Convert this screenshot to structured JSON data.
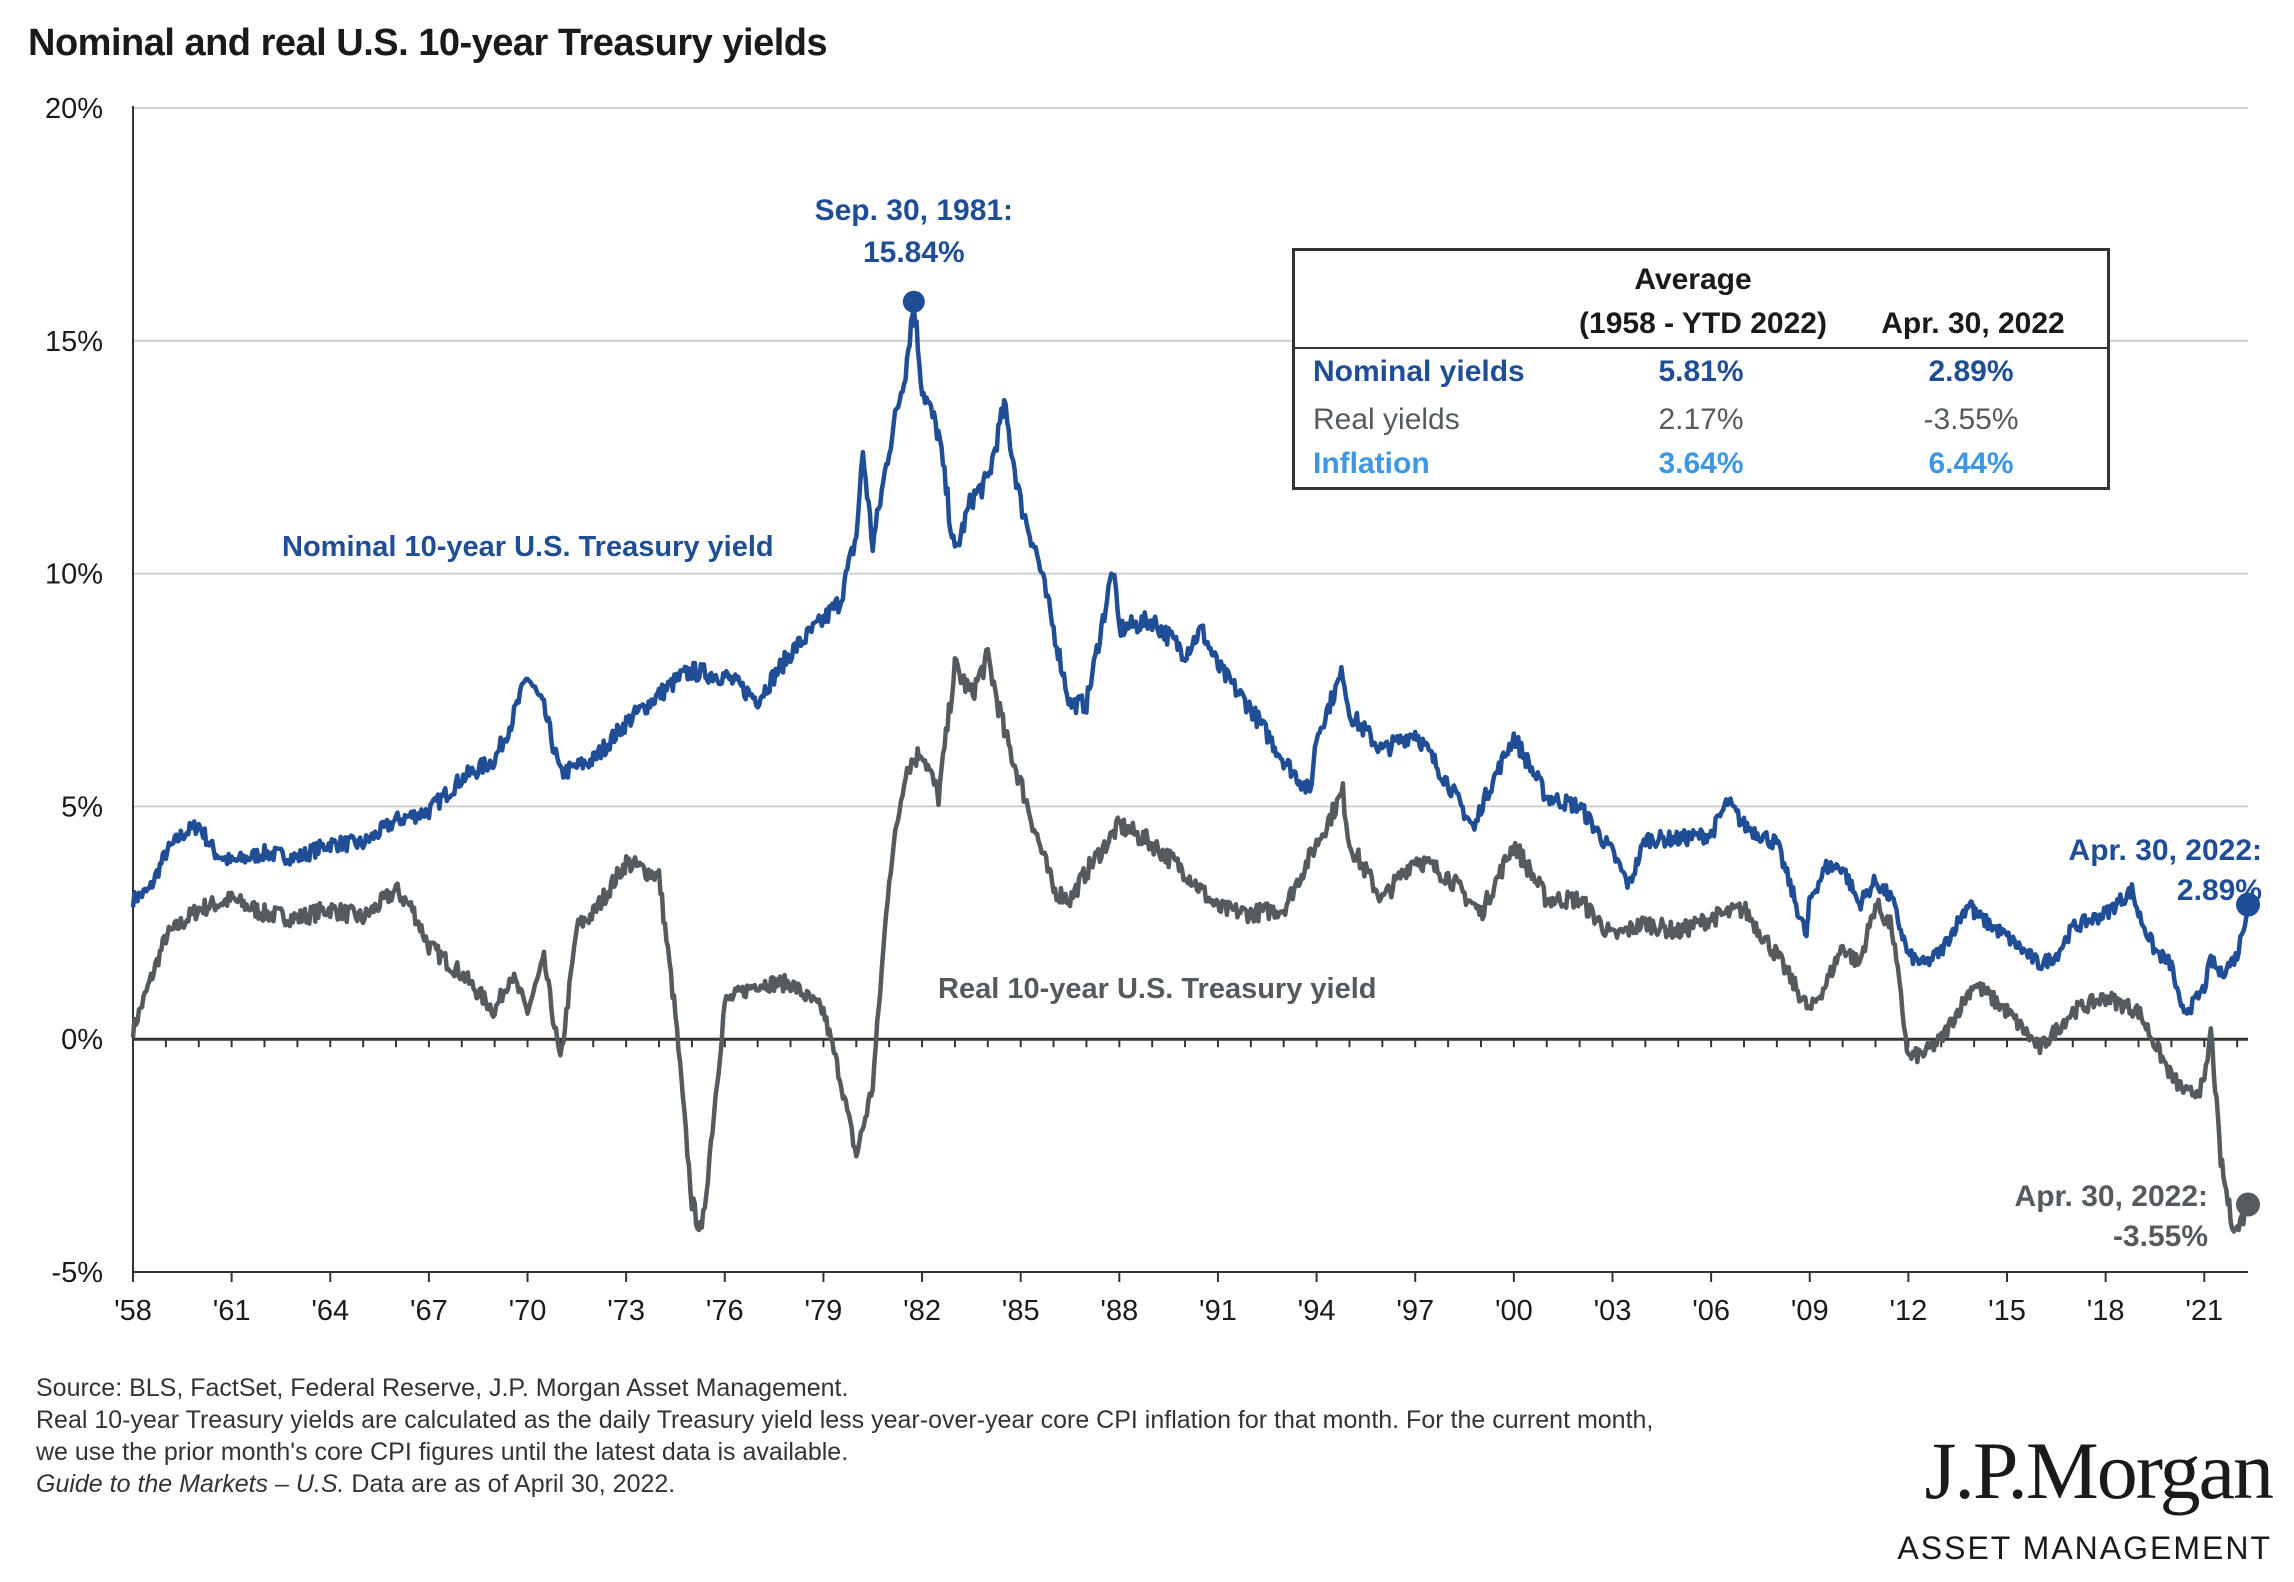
{
  "title": "Nominal and real U.S. 10-year Treasury yields",
  "colors": {
    "nominal": "#1f4e96",
    "real": "#555a5f",
    "inflation": "#3c97e6",
    "grid": "#d0d0d0",
    "axis": "#333333"
  },
  "chart_data": {
    "type": "line",
    "title": "Nominal and real U.S. 10-year Treasury yields",
    "ylim": [
      -5,
      20
    ],
    "xlim": [
      1958,
      2022.33
    ],
    "yticks": [
      {
        "value": 20,
        "label": "20%"
      },
      {
        "value": 15,
        "label": "15%"
      },
      {
        "value": 10,
        "label": "10%"
      },
      {
        "value": 5,
        "label": "5%"
      },
      {
        "value": 0,
        "label": "0%"
      },
      {
        "value": -5,
        "label": "-5%"
      }
    ],
    "xticks": [
      {
        "value": 1958,
        "label": "'58"
      },
      {
        "value": 1961,
        "label": "'61"
      },
      {
        "value": 1964,
        "label": "'64"
      },
      {
        "value": 1967,
        "label": "'67"
      },
      {
        "value": 1970,
        "label": "'70"
      },
      {
        "value": 1973,
        "label": "'73"
      },
      {
        "value": 1976,
        "label": "'76"
      },
      {
        "value": 1979,
        "label": "'79"
      },
      {
        "value": 1982,
        "label": "'82"
      },
      {
        "value": 1985,
        "label": "'85"
      },
      {
        "value": 1988,
        "label": "'88"
      },
      {
        "value": 1991,
        "label": "'91"
      },
      {
        "value": 1994,
        "label": "'94"
      },
      {
        "value": 1997,
        "label": "'97"
      },
      {
        "value": 2000,
        "label": "'00"
      },
      {
        "value": 2003,
        "label": "'03"
      },
      {
        "value": 2006,
        "label": "'06"
      },
      {
        "value": 2009,
        "label": "'09"
      },
      {
        "value": 2012,
        "label": "'12"
      },
      {
        "value": 2015,
        "label": "'15"
      },
      {
        "value": 2018,
        "label": "'18"
      },
      {
        "value": 2021,
        "label": "'21"
      }
    ],
    "grid": true,
    "series": [
      {
        "name": "Nominal 10-year U.S. Treasury yield",
        "x": [
          1958.0,
          1958.5,
          1959.0,
          1959.5,
          1960.0,
          1960.5,
          1961.0,
          1962.0,
          1963.0,
          1964.0,
          1965.0,
          1966.0,
          1967.0,
          1968.0,
          1969.0,
          1969.5,
          1970.0,
          1970.5,
          1971.0,
          1972.0,
          1973.0,
          1974.0,
          1974.7,
          1975.0,
          1976.0,
          1977.0,
          1978.0,
          1979.0,
          1979.5,
          1980.0,
          1980.2,
          1980.5,
          1981.0,
          1981.5,
          1981.75,
          1982.0,
          1982.5,
          1983.0,
          1983.5,
          1984.0,
          1984.5,
          1985.0,
          1985.5,
          1986.0,
          1986.5,
          1987.0,
          1987.5,
          1987.8,
          1988.0,
          1989.0,
          1990.0,
          1990.5,
          1991.0,
          1992.0,
          1993.0,
          1993.8,
          1994.0,
          1994.8,
          1995.0,
          1996.0,
          1997.0,
          1998.0,
          1998.8,
          1999.0,
          2000.0,
          2001.0,
          2002.0,
          2003.0,
          2003.5,
          2004.0,
          2005.0,
          2006.0,
          2006.5,
          2007.0,
          2008.0,
          2008.9,
          2009.0,
          2009.5,
          2010.0,
          2010.5,
          2011.0,
          2011.5,
          2012.0,
          2012.5,
          2013.0,
          2013.9,
          2014.0,
          2015.0,
          2016.0,
          2016.5,
          2017.0,
          2018.0,
          2018.8,
          2019.0,
          2019.5,
          2020.0,
          2020.3,
          2020.6,
          2021.0,
          2021.2,
          2021.5,
          2022.0,
          2022.33
        ],
        "values": [
          3.0,
          3.2,
          4.0,
          4.4,
          4.6,
          4.0,
          3.8,
          4.0,
          3.9,
          4.2,
          4.2,
          4.7,
          4.9,
          5.6,
          6.0,
          6.8,
          7.8,
          7.1,
          5.7,
          6.0,
          6.8,
          7.4,
          7.8,
          7.9,
          7.8,
          7.3,
          8.3,
          9.0,
          9.4,
          10.8,
          12.6,
          10.6,
          12.7,
          14.4,
          15.84,
          14.0,
          13.0,
          10.4,
          11.6,
          12.0,
          13.6,
          11.5,
          10.4,
          8.8,
          7.2,
          7.2,
          9.0,
          10.1,
          8.8,
          9.0,
          8.3,
          8.8,
          8.0,
          7.1,
          6.0,
          5.3,
          6.5,
          7.9,
          7.0,
          6.2,
          6.6,
          5.5,
          4.5,
          5.0,
          6.5,
          5.2,
          5.0,
          4.0,
          3.3,
          4.3,
          4.3,
          4.4,
          5.1,
          4.6,
          4.2,
          2.2,
          3.0,
          3.7,
          3.7,
          2.9,
          3.4,
          3.0,
          1.8,
          1.6,
          1.9,
          3.0,
          2.7,
          2.2,
          1.6,
          1.8,
          2.4,
          2.7,
          3.2,
          2.7,
          1.9,
          1.6,
          0.6,
          0.7,
          1.1,
          1.7,
          1.4,
          1.8,
          2.89
        ]
      },
      {
        "name": "Real 10-year U.S. Treasury yield",
        "x": [
          1958.0,
          1958.5,
          1959.0,
          1959.5,
          1960.0,
          1961.0,
          1962.0,
          1963.0,
          1964.0,
          1965.0,
          1966.0,
          1966.5,
          1967.0,
          1968.0,
          1969.0,
          1969.5,
          1970.0,
          1970.5,
          1971.0,
          1971.5,
          1972.0,
          1973.0,
          1974.0,
          1974.5,
          1975.0,
          1975.3,
          1976.0,
          1977.0,
          1978.0,
          1979.0,
          1979.5,
          1980.0,
          1980.5,
          1981.0,
          1981.5,
          1982.0,
          1982.5,
          1983.0,
          1983.5,
          1984.0,
          1984.5,
          1985.0,
          1986.0,
          1986.5,
          1987.0,
          1988.0,
          1989.0,
          1990.0,
          1991.0,
          1992.0,
          1993.0,
          1994.0,
          1994.8,
          1995.0,
          1996.0,
          1997.0,
          1998.0,
          1999.0,
          2000.0,
          2001.0,
          2002.0,
          2003.0,
          2004.0,
          2005.0,
          2006.0,
          2007.0,
          2008.0,
          2009.0,
          2009.5,
          2010.0,
          2010.5,
          2011.0,
          2011.5,
          2012.0,
          2012.5,
          2013.0,
          2014.0,
          2015.0,
          2016.0,
          2017.0,
          2018.0,
          2019.0,
          2019.5,
          2020.0,
          2020.5,
          2021.0,
          2021.2,
          2021.5,
          2021.8,
          2022.0,
          2022.33
        ],
        "values": [
          0.2,
          1.2,
          2.2,
          2.5,
          2.8,
          3.0,
          2.7,
          2.6,
          2.8,
          2.6,
          3.2,
          2.8,
          2.0,
          1.4,
          0.6,
          1.4,
          0.6,
          1.7,
          -0.5,
          2.4,
          2.7,
          3.8,
          3.5,
          0.5,
          -3.5,
          -4.2,
          0.8,
          1.2,
          1.2,
          0.6,
          -0.8,
          -2.5,
          -1.0,
          3.5,
          5.8,
          6.2,
          5.2,
          8.0,
          7.4,
          8.2,
          6.6,
          5.5,
          3.2,
          3.0,
          3.6,
          4.6,
          4.2,
          3.6,
          2.8,
          2.7,
          2.8,
          4.2,
          5.3,
          4.2,
          3.0,
          3.9,
          3.5,
          2.7,
          4.2,
          3.0,
          3.0,
          2.2,
          2.5,
          2.3,
          2.6,
          2.8,
          1.8,
          0.6,
          1.2,
          2.0,
          1.6,
          2.9,
          2.4,
          -0.4,
          -0.3,
          0.0,
          1.2,
          0.6,
          -0.2,
          0.6,
          0.9,
          0.6,
          -0.1,
          -0.8,
          -1.2,
          -1.0,
          0.2,
          -2.6,
          -3.8,
          -4.1,
          -3.55
        ]
      }
    ],
    "annotations": {
      "peak": {
        "x": 1981.75,
        "y": 15.84,
        "line1": "Sep. 30, 1981:",
        "line2": "15.84%"
      },
      "nominal_end": {
        "x": 2022.33,
        "y": 2.89,
        "line1": "Apr. 30, 2022:",
        "line2": "2.89%"
      },
      "real_end": {
        "x": 2022.33,
        "y": -3.55,
        "line1": "Apr. 30, 2022:",
        "line2": "-3.55%"
      },
      "nominal_label": "Nominal  10-year U.S. Treasury yield",
      "real_label": "Real 10-year U.S. Treasury yield"
    }
  },
  "stats_table": {
    "header_avg_line1": "Average",
    "header_avg_line2": "(1958 - YTD 2022)",
    "header_current": "Apr. 30, 2022",
    "rows": [
      {
        "label": "Nominal yields",
        "avg": "5.81%",
        "current": "2.89%"
      },
      {
        "label": "Real yields",
        "avg": "2.17%",
        "current": "-3.55%"
      },
      {
        "label": "Inflation",
        "avg": "3.64%",
        "current": "6.44%"
      }
    ]
  },
  "footer": {
    "source": "Source: BLS, FactSet, Federal Reserve, J.P. Morgan Asset Management.",
    "note": "Real 10-year Treasury yields are calculated as the daily Treasury yield less year-over-year core CPI inflation for that month. For the current month,",
    "note2": "we use the prior month's core CPI figures until the latest data is available.",
    "guide_italic": "Guide to the Markets – U.S.",
    "guide_rest": " Data are as of April 30, 2022."
  },
  "logo": {
    "wordmark": "J.P.Morgan",
    "subtitle": "ASSET MANAGEMENT"
  }
}
